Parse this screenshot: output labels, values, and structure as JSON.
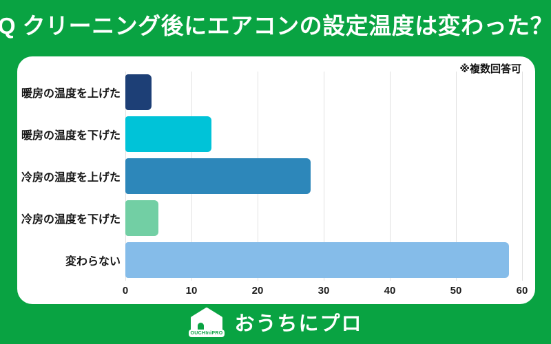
{
  "page": {
    "background_color": "#09a342",
    "panel_color": "#ffffff"
  },
  "header": {
    "title": "Q クリーニング後にエアコンの設定温度は変わった？"
  },
  "chart_data": {
    "type": "bar",
    "orientation": "horizontal",
    "title": "",
    "note": "※複数回答可",
    "categories": [
      "暖房の温度を上げた",
      "暖房の温度を下げた",
      "冷房の温度を上げた",
      "冷房の温度を下げた",
      "変わらない"
    ],
    "values": [
      4,
      13,
      28,
      5,
      58
    ],
    "bar_colors": [
      "#1d3f76",
      "#00c3d8",
      "#2d87ba",
      "#72cfa4",
      "#85bce9"
    ],
    "xlabel": "",
    "ylabel": "",
    "xlim": [
      0,
      60
    ],
    "xticks": [
      0,
      10,
      20,
      30,
      40,
      50,
      60
    ],
    "grid": "vertical",
    "gridline_color": "#e1e1e1",
    "legend": "none"
  },
  "footer": {
    "brand_name": "おうちにプロ",
    "logo_subtext": "OUCHIniPRO",
    "logo_icon": "house-icon"
  }
}
